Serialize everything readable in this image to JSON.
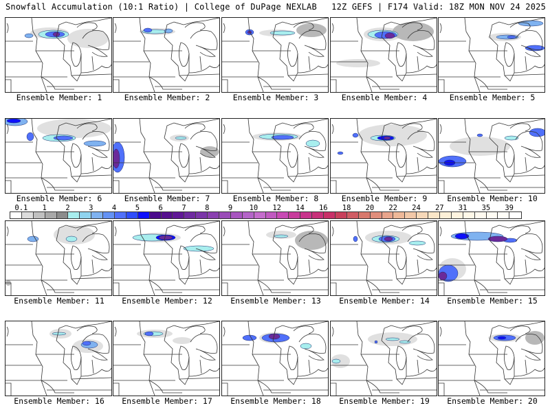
{
  "header": {
    "title_left": "Snowfall Accumulation (10:1 Ratio) | College of DuPage NEXLAB",
    "title_right": "12Z GEFS | F174 Valid: 18Z MON NOV 24 2025"
  },
  "panels": [
    {
      "label": "Ensemble Member: 1",
      "member": 1,
      "max_category": "7"
    },
    {
      "label": "Ensemble Member: 2",
      "member": 2,
      "max_category": "4"
    },
    {
      "label": "Ensemble Member: 3",
      "member": 3,
      "max_category": "6"
    },
    {
      "label": "Ensemble Member: 4",
      "member": 4,
      "max_category": "7"
    },
    {
      "label": "Ensemble Member: 5",
      "member": 5,
      "max_category": "5"
    },
    {
      "label": "Ensemble Member: 6",
      "member": 6,
      "max_category": "5"
    },
    {
      "label": "Ensemble Member: 7",
      "member": 7,
      "max_category": "7"
    },
    {
      "label": "Ensemble Member: 8",
      "member": 8,
      "max_category": "5"
    },
    {
      "label": "Ensemble Member: 9",
      "member": 9,
      "max_category": "7"
    },
    {
      "label": "Ensemble Member: 10",
      "member": 10,
      "max_category": "5"
    },
    {
      "label": "Ensemble Member: 11",
      "member": 11,
      "max_category": "3"
    },
    {
      "label": "Ensemble Member: 12",
      "member": 12,
      "max_category": "7"
    },
    {
      "label": "Ensemble Member: 13",
      "member": 13,
      "max_category": "3"
    },
    {
      "label": "Ensemble Member: 14",
      "member": 14,
      "max_category": "7"
    },
    {
      "label": "Ensemble Member: 15",
      "member": 15,
      "max_category": "7"
    },
    {
      "label": "Ensemble Member: 16",
      "member": 16,
      "max_category": "5"
    },
    {
      "label": "Ensemble Member: 17",
      "member": 17,
      "max_category": "4"
    },
    {
      "label": "Ensemble Member: 18",
      "member": 18,
      "max_category": "7"
    },
    {
      "label": "Ensemble Member: 19",
      "member": 19,
      "max_category": "4"
    },
    {
      "label": "Ensemble Member: 20",
      "member": 20,
      "max_category": "5"
    }
  ],
  "colorbar": {
    "labels": [
      "0.1",
      "1",
      "2",
      "3",
      "4",
      "5",
      "6",
      "7",
      "8",
      "9",
      "10",
      "12",
      "14",
      "16",
      "18",
      "20",
      "22",
      "24",
      "27",
      "31",
      "35",
      "39"
    ],
    "colors": [
      "#ffffff",
      "#dcdcdc",
      "#c0c0c0",
      "#a8a8a8",
      "#8c8c8c",
      "#a8eeee",
      "#8fd3ee",
      "#7fb2f0",
      "#6492f4",
      "#5070fa",
      "#2e4cfb",
      "#0d10fb",
      "#4a0a8c",
      "#55108e",
      "#601896",
      "#6e2aa0",
      "#7a35a8",
      "#8a40b0",
      "#9a4cb8",
      "#a855c0",
      "#b464c8",
      "#c46ccc",
      "#c05ac0",
      "#c84ab4",
      "#c83c9c",
      "#c8348c",
      "#c8307a",
      "#c83068",
      "#c8405c",
      "#d05c64",
      "#d8786c",
      "#e08e7c",
      "#e8a48c",
      "#eeb898",
      "#f2c8a8",
      "#f6d8b8",
      "#fae6c8",
      "#fdf0d8",
      "#fff4e0",
      "#fff8e8",
      "#fffaf0",
      "#fffcf4",
      "#fffef8",
      "#ffffff"
    ]
  },
  "storm_colors": {
    "gray_light": "#e0e0e0",
    "gray_mid": "#b8b8b8",
    "gray_dark": "#909090",
    "cyan": "#a8eeee",
    "blue_light": "#7fb2f0",
    "blue": "#5070fa",
    "blue_dark": "#0d10fb",
    "purple": "#6a2a9a"
  }
}
